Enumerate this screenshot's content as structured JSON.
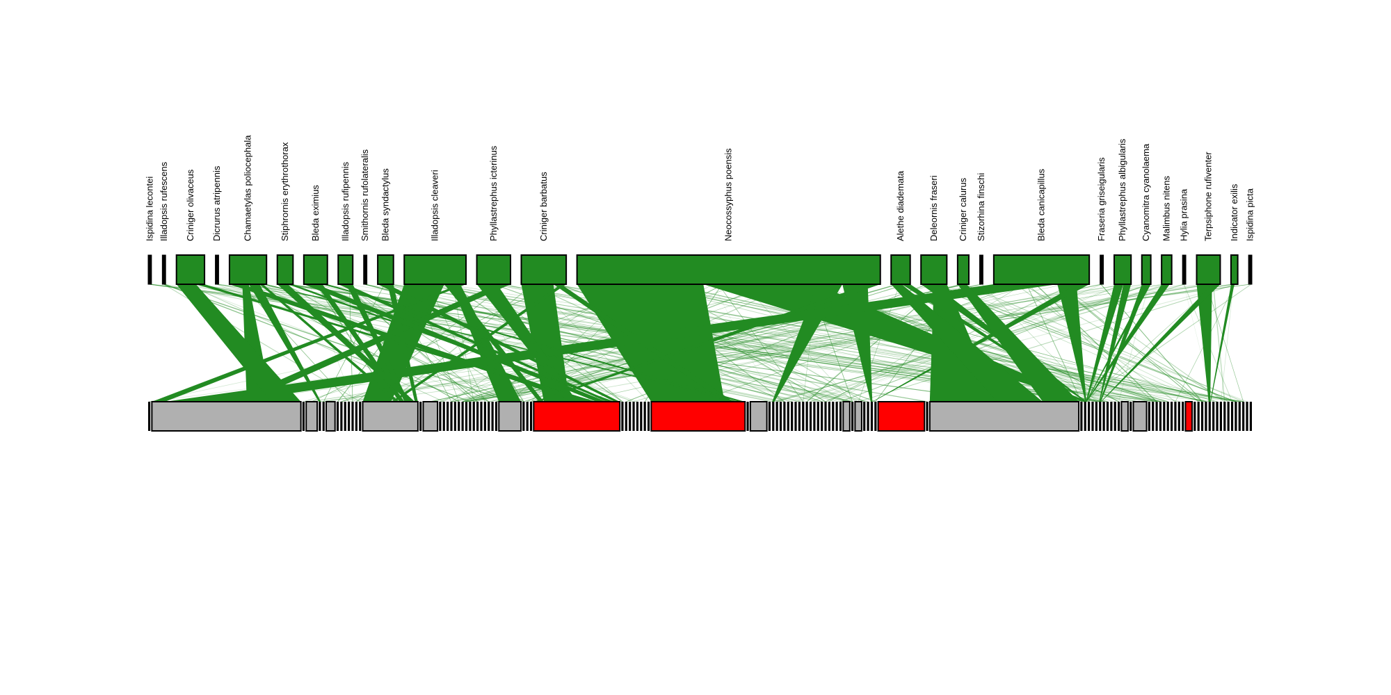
{
  "colors": {
    "top_fill": "#228b22",
    "link": "#228b22",
    "bottom_gray": "#b0b0b0",
    "bottom_red": "#ff0000",
    "bottom_minor": "#000000",
    "outline": "#000000"
  },
  "top_species": [
    {
      "name": "Ispidina lecontei",
      "w": 0.3
    },
    {
      "name": "Illadopsis rufescens",
      "w": 0.3
    },
    {
      "name": "Criniger olivaceus",
      "w": 2.5
    },
    {
      "name": "Dicrurus atripennis",
      "w": 0.3
    },
    {
      "name": "Chamaetylas poliocephala",
      "w": 3.3
    },
    {
      "name": "Stiphrornis erythrothorax",
      "w": 1.4
    },
    {
      "name": "Bleda eximius",
      "w": 2.1
    },
    {
      "name": "Illadopsis rufipennis",
      "w": 1.3
    },
    {
      "name": "Smithornis rufolateralis",
      "w": 0.3
    },
    {
      "name": "Bleda syndactylus",
      "w": 1.4
    },
    {
      "name": "Illadopsis cleaveri",
      "w": 5.5
    },
    {
      "name": "Phyllastrephus icterinus",
      "w": 3.0
    },
    {
      "name": "Criniger barbatus",
      "w": 4.0
    },
    {
      "name": "Neocossyphus poensis",
      "w": 27.0
    },
    {
      "name": "Alethe diademata",
      "w": 1.7
    },
    {
      "name": "Deleornis fraseri",
      "w": 2.3
    },
    {
      "name": "Criniger calurus",
      "w": 1.0
    },
    {
      "name": "Stizorhina finschi",
      "w": 0.3
    },
    {
      "name": "Bleda canicapillus",
      "w": 8.5
    },
    {
      "name": "Fraseria griseigularis",
      "w": 0.3
    },
    {
      "name": "Phyllastrephus albigularis",
      "w": 1.5
    },
    {
      "name": "Cyanomitra cyanolaema",
      "w": 0.8
    },
    {
      "name": "Malimbus nitens",
      "w": 0.9
    },
    {
      "name": "Hylia prasina",
      "w": 0.3
    },
    {
      "name": "Terpsiphone rufiventer",
      "w": 2.1
    },
    {
      "name": "Indicator exilis",
      "w": 0.6
    },
    {
      "name": "Ispidina picta",
      "w": 0.3
    }
  ],
  "bottom_nodes": [
    {
      "w": 0.2,
      "c": "m"
    },
    {
      "w": 13.5,
      "c": "g"
    },
    {
      "w": 0.2,
      "c": "m"
    },
    {
      "w": 1.0,
      "c": "g"
    },
    {
      "w": 0.2,
      "c": "m"
    },
    {
      "w": 0.2,
      "c": "m"
    },
    {
      "w": 0.8,
      "c": "g"
    },
    {
      "w": 0.2,
      "c": "m"
    },
    {
      "w": 0.2,
      "c": "m"
    },
    {
      "w": 0.2,
      "c": "m"
    },
    {
      "w": 0.2,
      "c": "m"
    },
    {
      "w": 0.2,
      "c": "m"
    },
    {
      "w": 0.2,
      "c": "m"
    },
    {
      "w": 0.2,
      "c": "m"
    },
    {
      "w": 5.0,
      "c": "g"
    },
    {
      "w": 0.2,
      "c": "m"
    },
    {
      "w": 1.3,
      "c": "g"
    },
    {
      "w": 0.2,
      "c": "m"
    },
    {
      "w": 0.2,
      "c": "m"
    },
    {
      "w": 0.2,
      "c": "m"
    },
    {
      "w": 0.2,
      "c": "m"
    },
    {
      "w": 0.2,
      "c": "m"
    },
    {
      "w": 0.2,
      "c": "m"
    },
    {
      "w": 0.2,
      "c": "m"
    },
    {
      "w": 0.2,
      "c": "m"
    },
    {
      "w": 0.2,
      "c": "m"
    },
    {
      "w": 0.2,
      "c": "m"
    },
    {
      "w": 0.2,
      "c": "m"
    },
    {
      "w": 0.2,
      "c": "m"
    },
    {
      "w": 0.2,
      "c": "m"
    },
    {
      "w": 0.2,
      "c": "m"
    },
    {
      "w": 0.2,
      "c": "m"
    },
    {
      "w": 0.2,
      "c": "m"
    },
    {
      "w": 2.0,
      "c": "g"
    },
    {
      "w": 0.2,
      "c": "m"
    },
    {
      "w": 0.2,
      "c": "m"
    },
    {
      "w": 0.2,
      "c": "m"
    },
    {
      "w": 7.8,
      "c": "r"
    },
    {
      "w": 0.2,
      "c": "m"
    },
    {
      "w": 0.2,
      "c": "m"
    },
    {
      "w": 0.2,
      "c": "m"
    },
    {
      "w": 0.2,
      "c": "m"
    },
    {
      "w": 0.2,
      "c": "m"
    },
    {
      "w": 0.2,
      "c": "m"
    },
    {
      "w": 0.2,
      "c": "m"
    },
    {
      "w": 0.2,
      "c": "m"
    },
    {
      "w": 8.5,
      "c": "r"
    },
    {
      "w": 0.2,
      "c": "m"
    },
    {
      "w": 1.5,
      "c": "g"
    },
    {
      "w": 0.2,
      "c": "m"
    },
    {
      "w": 0.2,
      "c": "m"
    },
    {
      "w": 0.2,
      "c": "m"
    },
    {
      "w": 0.2,
      "c": "m"
    },
    {
      "w": 0.2,
      "c": "m"
    },
    {
      "w": 0.2,
      "c": "m"
    },
    {
      "w": 0.2,
      "c": "m"
    },
    {
      "w": 0.2,
      "c": "m"
    },
    {
      "w": 0.2,
      "c": "m"
    },
    {
      "w": 0.2,
      "c": "m"
    },
    {
      "w": 0.2,
      "c": "m"
    },
    {
      "w": 0.2,
      "c": "m"
    },
    {
      "w": 0.2,
      "c": "m"
    },
    {
      "w": 0.2,
      "c": "m"
    },
    {
      "w": 0.2,
      "c": "m"
    },
    {
      "w": 0.2,
      "c": "m"
    },
    {
      "w": 0.2,
      "c": "m"
    },
    {
      "w": 0.2,
      "c": "m"
    },
    {
      "w": 0.2,
      "c": "m"
    },
    {
      "w": 0.2,
      "c": "m"
    },
    {
      "w": 0.6,
      "c": "g"
    },
    {
      "w": 0.2,
      "c": "m"
    },
    {
      "w": 0.6,
      "c": "g"
    },
    {
      "w": 0.2,
      "c": "m"
    },
    {
      "w": 0.2,
      "c": "m"
    },
    {
      "w": 0.2,
      "c": "m"
    },
    {
      "w": 0.2,
      "c": "m"
    },
    {
      "w": 4.2,
      "c": "r"
    },
    {
      "w": 0.2,
      "c": "m"
    },
    {
      "w": 13.5,
      "c": "g"
    },
    {
      "w": 0.2,
      "c": "m"
    },
    {
      "w": 0.2,
      "c": "m"
    },
    {
      "w": 0.2,
      "c": "m"
    },
    {
      "w": 0.2,
      "c": "m"
    },
    {
      "w": 0.2,
      "c": "m"
    },
    {
      "w": 0.2,
      "c": "m"
    },
    {
      "w": 0.2,
      "c": "m"
    },
    {
      "w": 0.2,
      "c": "m"
    },
    {
      "w": 0.2,
      "c": "m"
    },
    {
      "w": 0.2,
      "c": "m"
    },
    {
      "w": 0.2,
      "c": "m"
    },
    {
      "w": 0.6,
      "c": "g"
    },
    {
      "w": 0.2,
      "c": "m"
    },
    {
      "w": 1.2,
      "c": "g"
    },
    {
      "w": 0.2,
      "c": "m"
    },
    {
      "w": 0.2,
      "c": "m"
    },
    {
      "w": 0.2,
      "c": "m"
    },
    {
      "w": 0.2,
      "c": "m"
    },
    {
      "w": 0.2,
      "c": "m"
    },
    {
      "w": 0.2,
      "c": "m"
    },
    {
      "w": 0.2,
      "c": "m"
    },
    {
      "w": 0.2,
      "c": "m"
    },
    {
      "w": 0.2,
      "c": "m"
    },
    {
      "w": 0.2,
      "c": "m"
    },
    {
      "w": 0.6,
      "c": "r"
    },
    {
      "w": 0.2,
      "c": "m"
    },
    {
      "w": 0.2,
      "c": "m"
    },
    {
      "w": 0.2,
      "c": "m"
    },
    {
      "w": 0.2,
      "c": "m"
    },
    {
      "w": 0.2,
      "c": "m"
    },
    {
      "w": 0.2,
      "c": "m"
    },
    {
      "w": 0.2,
      "c": "m"
    },
    {
      "w": 0.2,
      "c": "m"
    },
    {
      "w": 0.2,
      "c": "m"
    },
    {
      "w": 0.2,
      "c": "m"
    },
    {
      "w": 0.2,
      "c": "m"
    },
    {
      "w": 0.2,
      "c": "m"
    },
    {
      "w": 0.2,
      "c": "m"
    },
    {
      "w": 0.2,
      "c": "m"
    },
    {
      "w": 0.2,
      "c": "m"
    },
    {
      "w": 0.2,
      "c": "m"
    }
  ],
  "major_links": [
    [
      13,
      46,
      10.0
    ],
    [
      13,
      80,
      9.0
    ],
    [
      13,
      50,
      2.0
    ],
    [
      13,
      74,
      2.0
    ],
    [
      13,
      37,
      1.0
    ],
    [
      10,
      14,
      5.5
    ],
    [
      10,
      37,
      1.0
    ],
    [
      10,
      33,
      1.2
    ],
    [
      10,
      1,
      0.8
    ],
    [
      12,
      37,
      5.0
    ],
    [
      12,
      46,
      1.2
    ],
    [
      12,
      14,
      0.8
    ],
    [
      18,
      1,
      4.0
    ],
    [
      18,
      80,
      1.2
    ],
    [
      18,
      74,
      0.8
    ],
    [
      11,
      37,
      1.5
    ],
    [
      11,
      1,
      1.0
    ],
    [
      4,
      37,
      3.0
    ],
    [
      4,
      1,
      1.5
    ],
    [
      4,
      4,
      2.5
    ],
    [
      4,
      14,
      0.8
    ],
    [
      4,
      46,
      0.8
    ],
    [
      2,
      1,
      1.8
    ],
    [
      2,
      37,
      0.8
    ],
    [
      6,
      37,
      2.0
    ],
    [
      6,
      14,
      1.0
    ],
    [
      6,
      46,
      0.8
    ],
    [
      7,
      37,
      1.0
    ],
    [
      7,
      14,
      0.8
    ],
    [
      5,
      14,
      1.2
    ],
    [
      5,
      37,
      0.6
    ],
    [
      9,
      37,
      1.0
    ],
    [
      9,
      14,
      0.6
    ],
    [
      15,
      80,
      1.5
    ],
    [
      15,
      78,
      1.5
    ],
    [
      14,
      78,
      1.0
    ],
    [
      14,
      80,
      0.8
    ],
    [
      16,
      78,
      0.8
    ],
    [
      20,
      80,
      1.2
    ],
    [
      20,
      84,
      1.0
    ],
    [
      21,
      84,
      1.5
    ],
    [
      21,
      80,
      0.8
    ],
    [
      22,
      80,
      0.8
    ],
    [
      24,
      108,
      1.5
    ],
    [
      24,
      84,
      0.8
    ],
    [
      25,
      108,
      0.5
    ]
  ]
}
